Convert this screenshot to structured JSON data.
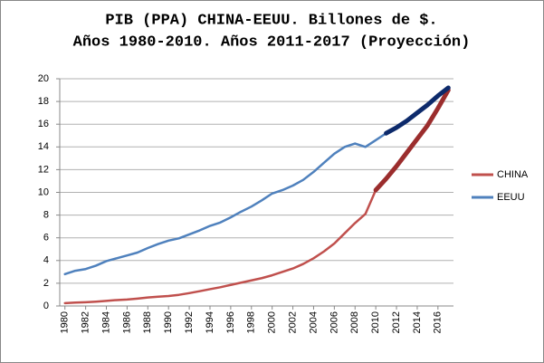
{
  "chart_data": {
    "type": "line",
    "title": "PIB (PPA) CHINA-EEUU. Billones de $.",
    "subtitle": "Años 1980-2010. Años 2011-2017 (Proyección)",
    "x": [
      1980,
      1981,
      1982,
      1983,
      1984,
      1985,
      1986,
      1987,
      1988,
      1989,
      1990,
      1991,
      1992,
      1993,
      1994,
      1995,
      1996,
      1997,
      1998,
      1999,
      2000,
      2001,
      2002,
      2003,
      2004,
      2005,
      2006,
      2007,
      2008,
      2009,
      2010,
      2011,
      2012,
      2013,
      2014,
      2015,
      2016,
      2017
    ],
    "series": [
      {
        "name": "CHINA",
        "color": "#c0504d",
        "projection_color": "#9b2d2d",
        "projection_from": 2010,
        "values": [
          0.25,
          0.3,
          0.33,
          0.38,
          0.45,
          0.52,
          0.57,
          0.65,
          0.75,
          0.82,
          0.88,
          0.98,
          1.13,
          1.3,
          1.48,
          1.65,
          1.85,
          2.05,
          2.25,
          2.45,
          2.7,
          3.0,
          3.3,
          3.7,
          4.2,
          4.8,
          5.5,
          6.4,
          7.3,
          8.1,
          10.2,
          11.2,
          12.3,
          13.5,
          14.7,
          15.9,
          17.4,
          19.0
        ]
      },
      {
        "name": "EEUU",
        "color": "#4f81bd",
        "projection_color": "#0d2a6b",
        "projection_from": 2011,
        "values": [
          2.8,
          3.1,
          3.25,
          3.55,
          3.95,
          4.2,
          4.45,
          4.7,
          5.1,
          5.45,
          5.75,
          5.95,
          6.3,
          6.65,
          7.05,
          7.35,
          7.8,
          8.3,
          8.75,
          9.3,
          9.9,
          10.2,
          10.6,
          11.1,
          11.8,
          12.6,
          13.4,
          14.0,
          14.3,
          14.0,
          14.6,
          15.2,
          15.7,
          16.3,
          17.0,
          17.7,
          18.5,
          19.2
        ]
      }
    ],
    "xlim": [
      1979.5,
      2017.5
    ],
    "xticks": [
      1980,
      1982,
      1984,
      1986,
      1988,
      1990,
      1992,
      1994,
      1996,
      1998,
      2000,
      2002,
      2004,
      2006,
      2008,
      2010,
      2012,
      2014,
      2016
    ],
    "ylim": [
      0,
      20
    ],
    "yticks": [
      0,
      2,
      4,
      6,
      8,
      10,
      12,
      14,
      16,
      18,
      20
    ],
    "grid": true,
    "legend": "right"
  }
}
